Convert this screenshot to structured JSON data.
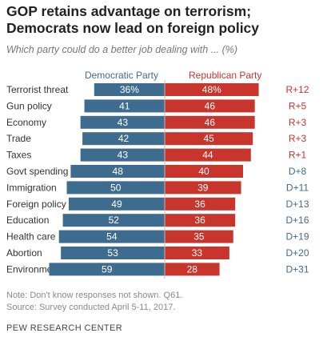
{
  "title": "GOP retains advantage on terrorism; Democrats now lead on foreign policy",
  "subtitle": "Which party could do a better job dealing with ... (%)",
  "notes": {
    "note": "Note: Don't know responses not shown. Q61.",
    "source": "Source: Survey conducted April 5-11, 2017."
  },
  "footer": "PEW RESEARCH CENTER",
  "chart_data": {
    "type": "bar",
    "layout": "diverging-horizontal",
    "categories": [
      "Terrorist threat",
      "Gun policy",
      "Economy",
      "Trade",
      "Taxes",
      "Govt spending",
      "Immigration",
      "Foreign policy",
      "Education",
      "Health care",
      "Abortion",
      "Environment"
    ],
    "series": [
      {
        "name": "Democratic Party",
        "color": "#3e6c8f",
        "values": [
          36,
          41,
          43,
          42,
          43,
          48,
          50,
          49,
          52,
          54,
          53,
          59
        ],
        "labels": [
          "36%",
          "41",
          "43",
          "42",
          "43",
          "48",
          "50",
          "49",
          "52",
          "54",
          "53",
          "59"
        ]
      },
      {
        "name": "Republican Party",
        "color": "#c8352c",
        "values": [
          48,
          46,
          46,
          45,
          44,
          40,
          39,
          36,
          36,
          35,
          33,
          28
        ],
        "labels": [
          "48%",
          "46",
          "46",
          "45",
          "44",
          "40",
          "39",
          "36",
          "36",
          "35",
          "33",
          "28"
        ]
      }
    ],
    "advantage": [
      "R+12",
      "R+5",
      "R+3",
      "R+3",
      "R+1",
      "D+8",
      "D+11",
      "D+13",
      "D+16",
      "D+19",
      "D+20",
      "D+31"
    ],
    "advantage_colors": {
      "R": "#c8352c",
      "D": "#3e6c8f"
    },
    "grid": false
  }
}
